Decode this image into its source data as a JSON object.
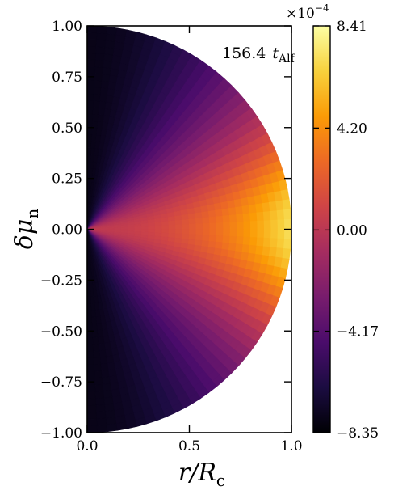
{
  "chart_data": {
    "type": "heatmap",
    "annotation": {
      "value": "156.4",
      "symbol": "t",
      "subscript": "Alf"
    },
    "xlabel": {
      "main": "r/R",
      "subscript": "c"
    },
    "ylabel": {
      "main": "δμ",
      "subscript": "n"
    },
    "xlim": [
      0.0,
      1.0
    ],
    "ylim": [
      -1.0,
      1.0
    ],
    "x_ticks": [
      "0.0",
      "0.5",
      "1.0"
    ],
    "y_ticks": [
      "1.00",
      "0.75",
      "0.50",
      "0.25",
      "0.00",
      "−0.25",
      "−0.50",
      "−0.75",
      "−1.00"
    ],
    "colorbar": {
      "multiplier": {
        "base": "×10",
        "exponent": "−4"
      },
      "range": [
        -8.35,
        8.41
      ],
      "ticks": [
        "8.41",
        "4.20",
        "0.00",
        "−4.17",
        "−8.35"
      ],
      "tick_values": [
        8.41,
        4.2,
        0.0,
        -4.17,
        -8.35
      ],
      "colormap": "inferno"
    },
    "field": {
      "domain": "half-disk r ≤ 1, x ≥ 0",
      "max_location": [
        1.0,
        0.0
      ],
      "min_location": [
        0.0,
        1.0
      ],
      "description_values": {
        "center": 0.0,
        "equator_edge": 8.41,
        "pole": -8.35
      }
    },
    "colors": {
      "inferno": [
        "#000004",
        "#1b0c41",
        "#4a0c6b",
        "#781c6d",
        "#a52c60",
        "#cf4446",
        "#ed6925",
        "#fb9b06",
        "#f7d13d",
        "#fcffa4"
      ]
    }
  }
}
